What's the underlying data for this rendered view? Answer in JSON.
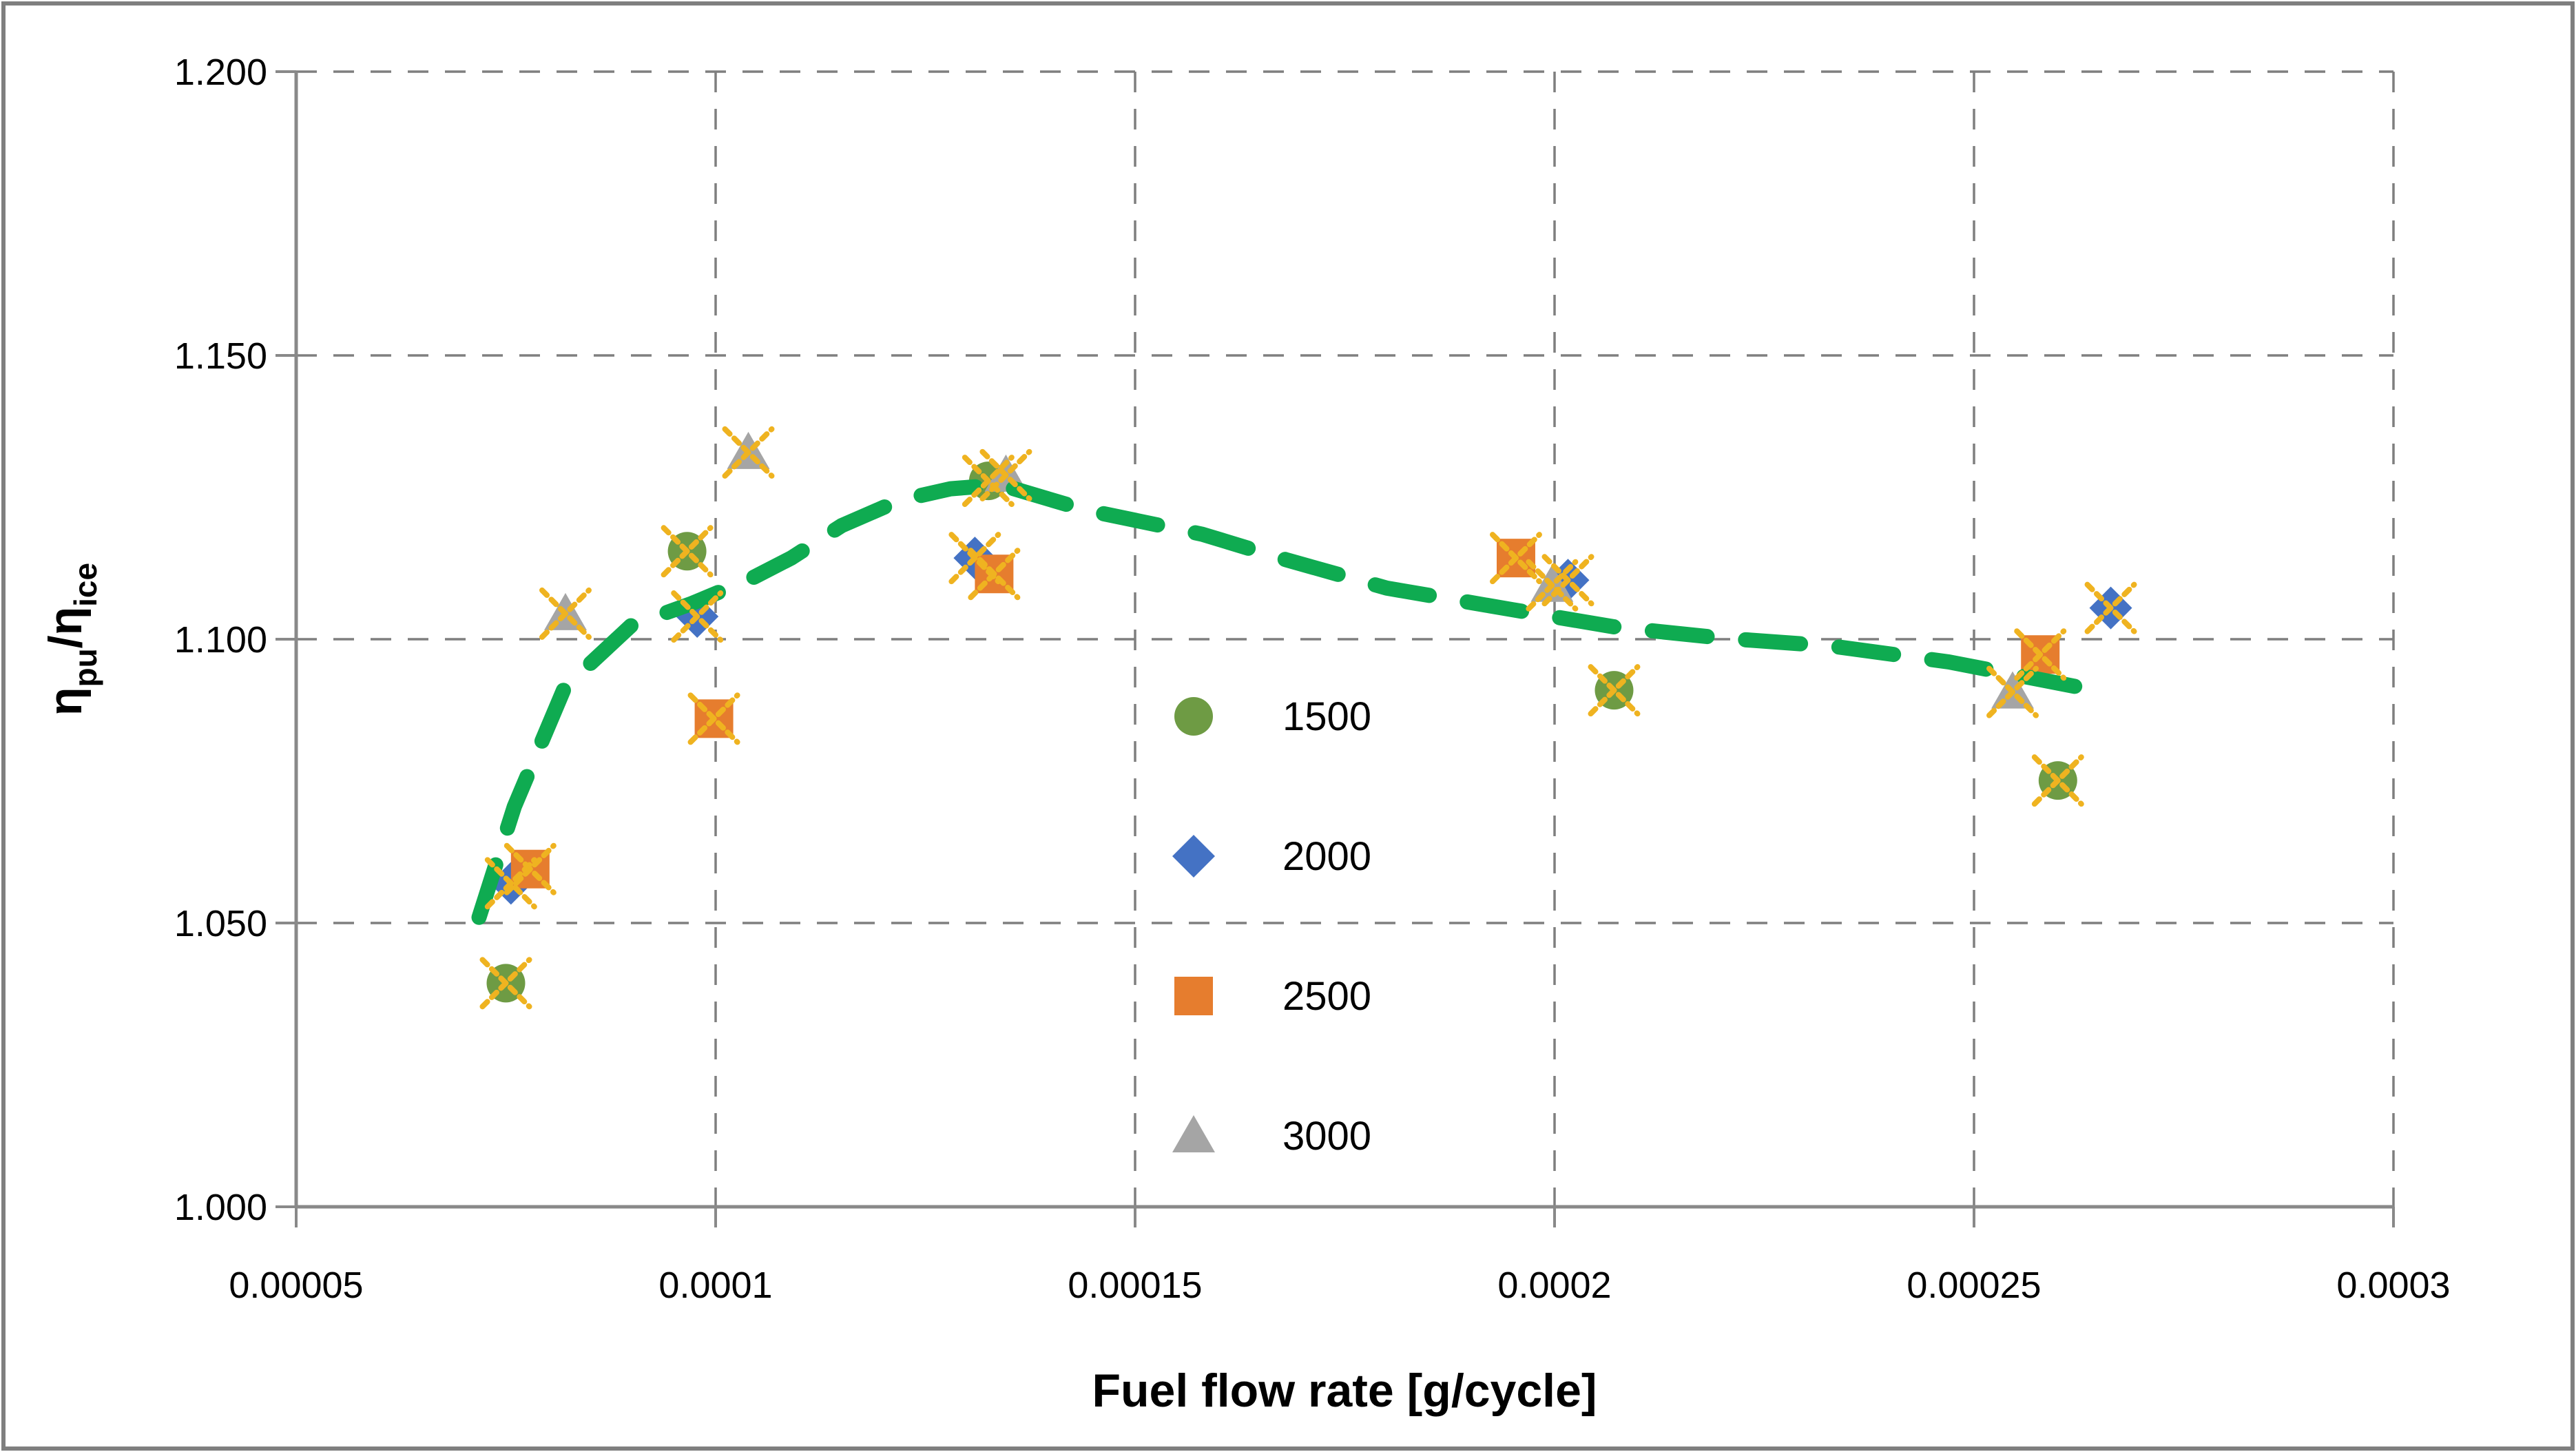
{
  "figure": {
    "background": "#FFFFFF",
    "border_color": "#7F7F7F"
  },
  "chart_data": {
    "type": "scatter",
    "title": "",
    "xlabel": "Fuel flow rate [g/cycle]",
    "ylabel": "η_pu/η_ice",
    "ylabel_parts": [
      {
        "t": "η",
        "sub": false
      },
      {
        "t": "pu",
        "sub": true
      },
      {
        "t": "/η",
        "sub": false
      },
      {
        "t": "ice",
        "sub": true
      }
    ],
    "xlim": [
      5e-05,
      0.0003
    ],
    "ylim": [
      1.0,
      1.2
    ],
    "x_ticks": [
      5e-05,
      0.0001,
      0.00015,
      0.0002,
      0.00025,
      0.0003
    ],
    "x_tick_labels": [
      "0.00005",
      "0.0001",
      "0.00015",
      "0.0002",
      "0.00025",
      "0.0003"
    ],
    "y_ticks": [
      1.2,
      1.15,
      1.1,
      1.05,
      1.0
    ],
    "y_tick_labels": [
      "1.200",
      "1.150",
      "1.100",
      "1.050",
      "1.000"
    ],
    "grid": true,
    "gridline_color": "#7F7F7F",
    "axis_line_color": "#898989",
    "series": [
      {
        "name": "1500",
        "marker": "circle",
        "color": "#6E9B44",
        "points": [
          [
            7.5e-05,
            1.0394
          ],
          [
            9.66e-05,
            1.1155
          ],
          [
            0.0001325,
            1.1279
          ],
          [
            0.0002071,
            1.091
          ],
          [
            0.00026,
            1.0751
          ]
        ]
      },
      {
        "name": "2000",
        "marker": "diamond",
        "color": "#4472C4",
        "points": [
          [
            7.56e-05,
            1.057
          ],
          [
            9.78e-05,
            1.104
          ],
          [
            0.0001309,
            1.1143
          ],
          [
            0.0002016,
            1.1104
          ],
          [
            0.0002663,
            1.1055
          ]
        ]
      },
      {
        "name": "2500",
        "marker": "square",
        "color": "#E67D2E",
        "points": [
          [
            7.79e-05,
            1.0595
          ],
          [
            9.98e-05,
            1.086
          ],
          [
            0.0001332,
            1.1115
          ],
          [
            0.0001954,
            1.1143
          ],
          [
            0.0002579,
            1.0973
          ]
        ]
      },
      {
        "name": "3000",
        "marker": "triangle",
        "color": "#A5A5A5",
        "points": [
          [
            8.21e-05,
            1.1045
          ],
          [
            0.0001039,
            1.1329
          ],
          [
            0.0001346,
            1.1289
          ],
          [
            0.0001997,
            1.1095
          ],
          [
            0.0002546,
            1.0907
          ]
        ]
      }
    ],
    "point_overlay_x": {
      "enabled": true,
      "color": "#EFB320",
      "note": "gold dotted X mark over every data point"
    },
    "trendline": {
      "color": "#0FAB51",
      "style": "dashed",
      "points": [
        [
          7.18e-05,
          1.051
        ],
        [
          7.6e-05,
          1.0705
        ],
        [
          8.2e-05,
          1.0915
        ],
        [
          9e-05,
          1.1025
        ],
        [
          9.7e-05,
          1.1062
        ],
        [
          0.000104,
          1.1105
        ],
        [
          0.000109,
          1.1143
        ],
        [
          0.000115,
          1.12
        ],
        [
          0.000122,
          1.1245
        ],
        [
          0.000128,
          1.1265
        ],
        [
          0.000134,
          1.1272
        ],
        [
          0.000144,
          1.1228
        ],
        [
          0.000158,
          1.1185
        ],
        [
          0.000168,
          1.114
        ],
        [
          0.00018,
          1.109
        ],
        [
          0.000195,
          1.1052
        ],
        [
          0.000207,
          1.1022
        ],
        [
          0.00022,
          1.1002
        ],
        [
          0.000233,
          1.0988
        ],
        [
          0.000247,
          1.096
        ],
        [
          0.000262,
          1.0917
        ]
      ]
    },
    "legend": {
      "position": "inside-center",
      "items": [
        "1500",
        "2000",
        "2500",
        "3000"
      ]
    }
  }
}
